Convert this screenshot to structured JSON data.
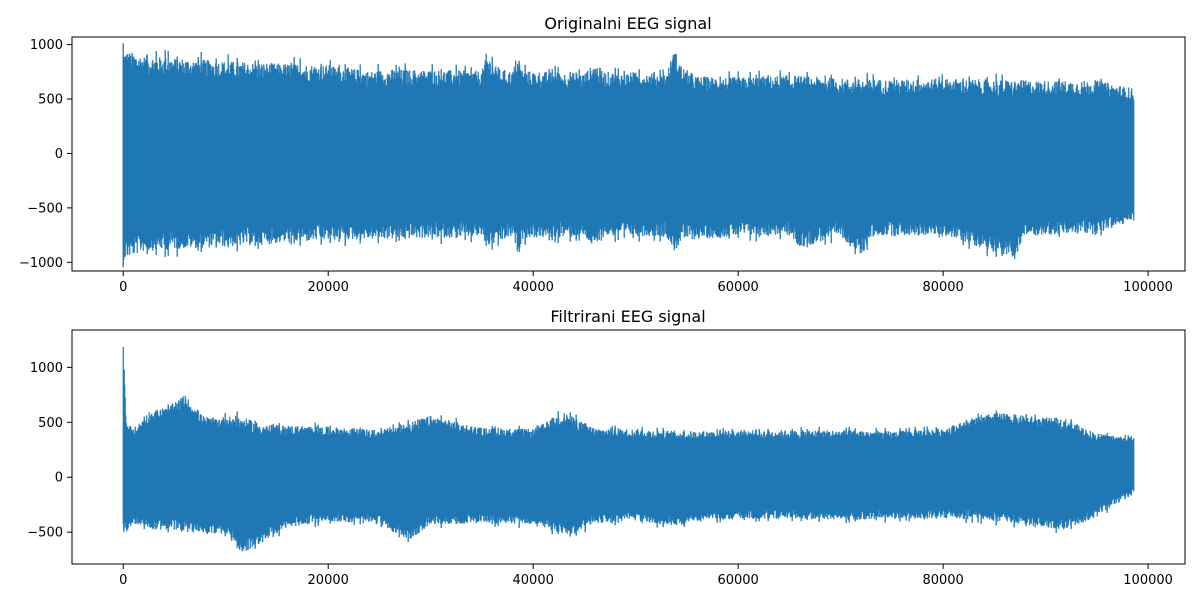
{
  "chart_data": [
    {
      "type": "line",
      "title": "Originalni EEG signal",
      "xlabel": "",
      "ylabel": "",
      "xlim": [
        -5000,
        103600
      ],
      "ylim": [
        -1080,
        1070
      ],
      "x_ticks": [
        0,
        20000,
        40000,
        60000,
        80000,
        100000
      ],
      "x_tick_labels": [
        "0",
        "20000",
        "40000",
        "60000",
        "80000",
        "100000"
      ],
      "y_ticks": [
        -1000,
        -500,
        0,
        500,
        1000
      ],
      "y_tick_labels": [
        "−1000",
        "−500",
        "0",
        "500",
        "1000"
      ],
      "grid": false,
      "color": "#1f77b4",
      "series": [
        {
          "x_range": [
            0,
            98600
          ],
          "upper_envelope": [
            [
              0,
              950
            ],
            [
              2000,
              900
            ],
            [
              5000,
              880
            ],
            [
              10000,
              850
            ],
            [
              15000,
              830
            ],
            [
              20000,
              815
            ],
            [
              24000,
              760
            ],
            [
              26000,
              775
            ],
            [
              30000,
              770
            ],
            [
              35000,
              760
            ],
            [
              35500,
              910
            ],
            [
              36500,
              780
            ],
            [
              38000,
              760
            ],
            [
              38400,
              900
            ],
            [
              39000,
              760
            ],
            [
              45000,
              740
            ],
            [
              46000,
              830
            ],
            [
              47000,
              750
            ],
            [
              53000,
              740
            ],
            [
              53800,
              960
            ],
            [
              54500,
              800
            ],
            [
              56000,
              710
            ],
            [
              60000,
              700
            ],
            [
              65000,
              720
            ],
            [
              70000,
              690
            ],
            [
              75000,
              680
            ],
            [
              80000,
              690
            ],
            [
              85000,
              680
            ],
            [
              90000,
              670
            ],
            [
              95000,
              670
            ],
            [
              98600,
              600
            ]
          ],
          "lower_envelope": [
            [
              0,
              -980
            ],
            [
              2000,
              -900
            ],
            [
              5000,
              -880
            ],
            [
              10000,
              -860
            ],
            [
              15000,
              -830
            ],
            [
              20000,
              -800
            ],
            [
              25000,
              -790
            ],
            [
              30000,
              -780
            ],
            [
              35000,
              -770
            ],
            [
              35500,
              -860
            ],
            [
              38000,
              -770
            ],
            [
              38500,
              -920
            ],
            [
              39000,
              -780
            ],
            [
              45000,
              -770
            ],
            [
              46000,
              -880
            ],
            [
              47000,
              -760
            ],
            [
              53000,
              -760
            ],
            [
              53800,
              -910
            ],
            [
              54500,
              -800
            ],
            [
              60000,
              -760
            ],
            [
              65000,
              -750
            ],
            [
              66000,
              -870
            ],
            [
              70000,
              -760
            ],
            [
              72000,
              -960
            ],
            [
              73000,
              -760
            ],
            [
              80000,
              -750
            ],
            [
              87000,
              -970
            ],
            [
              88000,
              -760
            ],
            [
              90000,
              -750
            ],
            [
              95000,
              -740
            ],
            [
              98600,
              -620
            ]
          ]
        }
      ]
    },
    {
      "type": "line",
      "title": "Filtrirani EEG signal",
      "xlabel": "",
      "ylabel": "",
      "xlim": [
        -5000,
        103600
      ],
      "ylim": [
        -790,
        1340
      ],
      "x_ticks": [
        0,
        20000,
        40000,
        60000,
        80000,
        100000
      ],
      "x_tick_labels": [
        "0",
        "20000",
        "40000",
        "60000",
        "80000",
        "100000"
      ],
      "y_ticks": [
        -500,
        0,
        500,
        1000
      ],
      "y_tick_labels": [
        "−500",
        "0",
        "500",
        "1000"
      ],
      "grid": false,
      "color": "#1f77b4",
      "series": [
        {
          "x_range": [
            0,
            98600
          ],
          "upper_envelope": [
            [
              0,
              1240
            ],
            [
              300,
              520
            ],
            [
              1000,
              430
            ],
            [
              2500,
              600
            ],
            [
              4500,
              650
            ],
            [
              6000,
              750
            ],
            [
              8000,
              540
            ],
            [
              11000,
              560
            ],
            [
              14000,
              480
            ],
            [
              20000,
              460
            ],
            [
              25000,
              430
            ],
            [
              30000,
              560
            ],
            [
              35000,
              450
            ],
            [
              40000,
              440
            ],
            [
              43000,
              590
            ],
            [
              46000,
              450
            ],
            [
              50000,
              440
            ],
            [
              55000,
              420
            ],
            [
              60000,
              430
            ],
            [
              65000,
              430
            ],
            [
              70000,
              430
            ],
            [
              75000,
              420
            ],
            [
              80000,
              450
            ],
            [
              85000,
              590
            ],
            [
              88000,
              560
            ],
            [
              92000,
              530
            ],
            [
              95000,
              400
            ],
            [
              98600,
              360
            ]
          ],
          "lower_envelope": [
            [
              0,
              -530
            ],
            [
              1000,
              -420
            ],
            [
              3000,
              -480
            ],
            [
              6000,
              -500
            ],
            [
              10000,
              -520
            ],
            [
              11700,
              -700
            ],
            [
              13500,
              -600
            ],
            [
              16000,
              -460
            ],
            [
              20000,
              -400
            ],
            [
              25000,
              -430
            ],
            [
              28000,
              -580
            ],
            [
              30000,
              -430
            ],
            [
              35000,
              -420
            ],
            [
              40000,
              -430
            ],
            [
              43500,
              -540
            ],
            [
              46000,
              -420
            ],
            [
              50000,
              -400
            ],
            [
              54000,
              -450
            ],
            [
              57000,
              -390
            ],
            [
              60000,
              -380
            ],
            [
              65000,
              -380
            ],
            [
              70000,
              -390
            ],
            [
              75000,
              -380
            ],
            [
              80000,
              -370
            ],
            [
              85000,
              -400
            ],
            [
              92000,
              -480
            ],
            [
              95000,
              -360
            ],
            [
              98600,
              -140
            ]
          ]
        }
      ]
    }
  ]
}
